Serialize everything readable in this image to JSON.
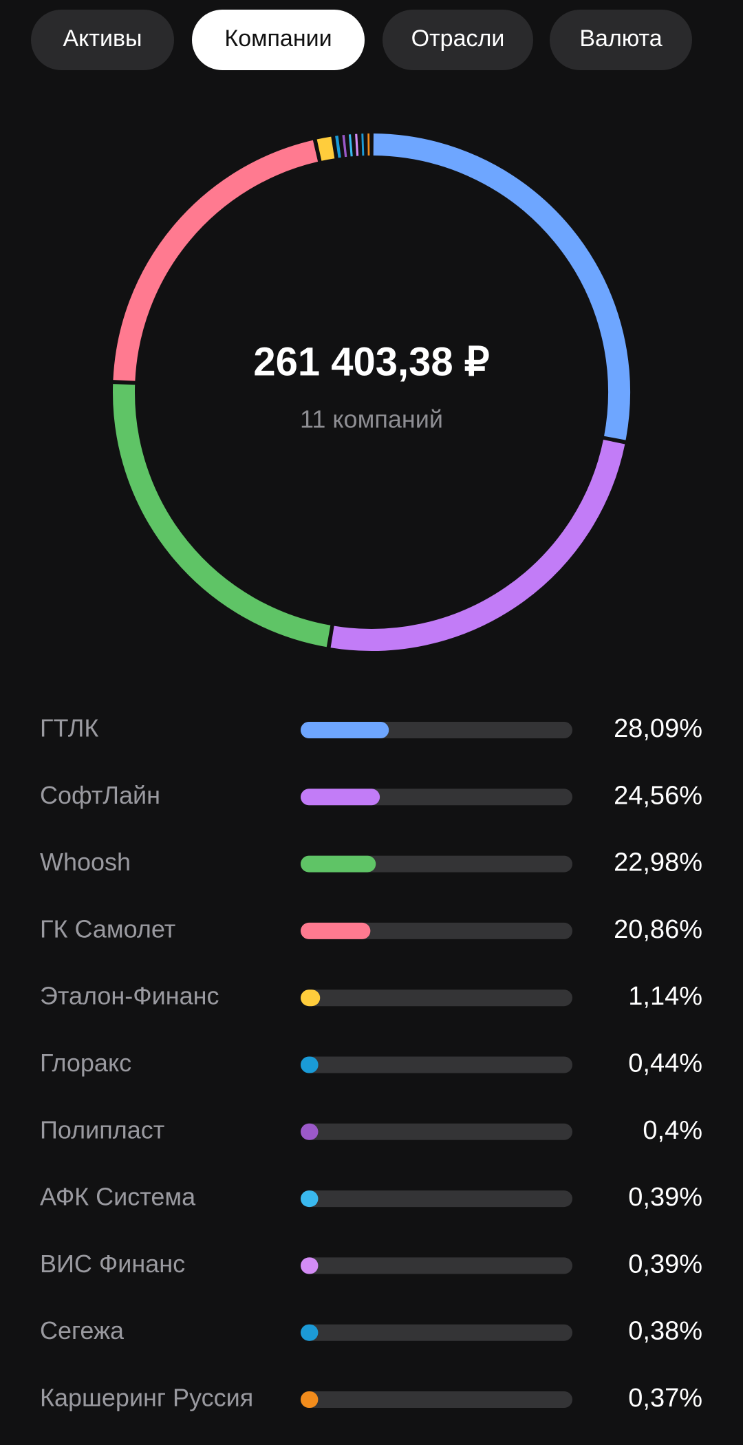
{
  "tabs": [
    {
      "label": "Активы",
      "selected": false
    },
    {
      "label": "Компании",
      "selected": true
    },
    {
      "label": "Отрасли",
      "selected": false
    },
    {
      "label": "Валюта",
      "selected": false
    }
  ],
  "chart_data": {
    "type": "donut",
    "center_text": "261 403,38 ₽",
    "center_subtitle": "11 компаний",
    "categories": [
      "ГТЛК",
      "СофтЛайн",
      "Whoosh",
      "ГК Самолет",
      "Эталон-Финанс",
      "Глоракс",
      "Полипласт",
      "АФК Система",
      "ВИС Финанс",
      "Сегежа",
      "Каршеринг Руссия"
    ],
    "values": [
      28.09,
      24.56,
      22.98,
      20.86,
      1.14,
      0.44,
      0.4,
      0.39,
      0.39,
      0.38,
      0.37
    ],
    "value_labels": [
      "28,09%",
      "24,56%",
      "22,98%",
      "20,86%",
      "1,14%",
      "0,44%",
      "0,4%",
      "0,39%",
      "0,39%",
      "0,38%",
      "0,37%"
    ],
    "colors": [
      "#6ea6ff",
      "#c27cf7",
      "#5fc466",
      "#ff7a90",
      "#ffcd3c",
      "#1a9bd7",
      "#9b59c9",
      "#3ab9ef",
      "#d38cf5",
      "#1c9ad6",
      "#f28c1c"
    ],
    "xlim": [
      0,
      100
    ]
  }
}
